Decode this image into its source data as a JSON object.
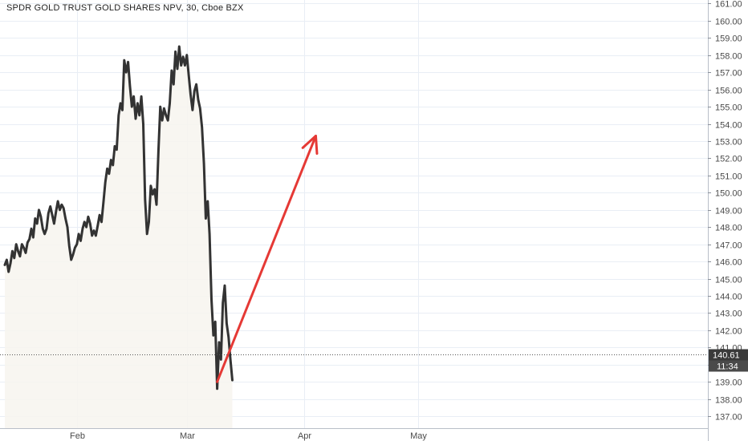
{
  "header": {
    "title": "SPDR GOLD TRUST GOLD SHARES NPV, 30, Cboe BZX"
  },
  "price_badge": {
    "price": "140.61",
    "countdown": "11:34",
    "color": "#3a3a3a"
  },
  "colors": {
    "price_line": "#333333",
    "arrow": "#e53935",
    "grid": "#e9eef5",
    "last_price_line": "#555555"
  },
  "chart_data": {
    "type": "line",
    "title": "SPDR GOLD TRUST GOLD SHARES NPV, 30, Cboe BZX",
    "xlabel": "",
    "ylabel": "",
    "ylim": [
      136.5,
      161.2
    ],
    "y_ticks": [
      "137.00",
      "138.00",
      "139.00",
      "140.00",
      "141.00",
      "142.00",
      "143.00",
      "144.00",
      "145.00",
      "146.00",
      "147.00",
      "148.00",
      "149.00",
      "150.00",
      "151.00",
      "152.00",
      "153.00",
      "154.00",
      "155.00",
      "156.00",
      "157.00",
      "158.00",
      "159.00",
      "160.00",
      "161.00"
    ],
    "x_ticks": [
      {
        "label": "Feb",
        "day": 31
      },
      {
        "label": "Mar",
        "day": 60
      },
      {
        "label": "Apr",
        "day": 91
      },
      {
        "label": "May",
        "day": 121
      }
    ],
    "xlim_days": [
      12,
      160
    ],
    "series": [
      {
        "values": [
          [
            12,
            145.8
          ],
          [
            12.5,
            146.1
          ],
          [
            13,
            145.4
          ],
          [
            13.5,
            145.9
          ],
          [
            14,
            146.6
          ],
          [
            14.5,
            146.2
          ],
          [
            15,
            147.0
          ],
          [
            15.5,
            146.6
          ],
          [
            16,
            146.3
          ],
          [
            16.5,
            147.0
          ],
          [
            17,
            146.8
          ],
          [
            17.5,
            146.5
          ],
          [
            18,
            147.1
          ],
          [
            18.5,
            147.3
          ],
          [
            19,
            147.9
          ],
          [
            19.5,
            147.4
          ],
          [
            20,
            148.5
          ],
          [
            20.5,
            148.2
          ],
          [
            21,
            149.0
          ],
          [
            21.5,
            148.6
          ],
          [
            22,
            147.9
          ],
          [
            22.5,
            147.6
          ],
          [
            23,
            147.9
          ],
          [
            23.5,
            148.8
          ],
          [
            24,
            149.2
          ],
          [
            24.5,
            148.7
          ],
          [
            25,
            148.2
          ],
          [
            25.5,
            148.9
          ],
          [
            26,
            149.5
          ],
          [
            26.5,
            149.0
          ],
          [
            27,
            149.3
          ],
          [
            27.5,
            149.1
          ],
          [
            28,
            148.5
          ],
          [
            28.5,
            148.0
          ],
          [
            29,
            146.9
          ],
          [
            29.5,
            146.1
          ],
          [
            30,
            146.4
          ],
          [
            30.5,
            146.8
          ],
          [
            31,
            147.0
          ],
          [
            31.5,
            147.6
          ],
          [
            32,
            147.2
          ],
          [
            32.5,
            147.9
          ],
          [
            33,
            148.3
          ],
          [
            33.5,
            148.0
          ],
          [
            34,
            148.6
          ],
          [
            34.5,
            148.2
          ],
          [
            35,
            147.5
          ],
          [
            35.5,
            147.8
          ],
          [
            36,
            147.5
          ],
          [
            36.5,
            148.1
          ],
          [
            37,
            148.7
          ],
          [
            37.5,
            148.3
          ],
          [
            38,
            149.4
          ],
          [
            38.5,
            150.6
          ],
          [
            39,
            151.4
          ],
          [
            39.5,
            151.1
          ],
          [
            40,
            151.9
          ],
          [
            40.5,
            151.6
          ],
          [
            41,
            152.7
          ],
          [
            41.5,
            152.5
          ],
          [
            42,
            154.5
          ],
          [
            42.5,
            155.2
          ],
          [
            43,
            154.8
          ],
          [
            43.5,
            157.7
          ],
          [
            44,
            157.0
          ],
          [
            44.5,
            157.6
          ],
          [
            45,
            156.2
          ],
          [
            45.5,
            155.0
          ],
          [
            46,
            155.6
          ],
          [
            46.5,
            154.3
          ],
          [
            47,
            155.2
          ],
          [
            47.5,
            154.5
          ],
          [
            48,
            155.6
          ],
          [
            48.5,
            154.0
          ],
          [
            49,
            149.6
          ],
          [
            49.5,
            147.6
          ],
          [
            50,
            148.3
          ],
          [
            50.5,
            150.4
          ],
          [
            51,
            149.9
          ],
          [
            51.5,
            150.2
          ],
          [
            52,
            149.3
          ],
          [
            52.5,
            152.4
          ],
          [
            53,
            155.0
          ],
          [
            53.5,
            154.2
          ],
          [
            54,
            154.9
          ],
          [
            54.5,
            154.5
          ],
          [
            55,
            154.2
          ],
          [
            55.5,
            155.2
          ],
          [
            56,
            157.1
          ],
          [
            56.5,
            156.3
          ],
          [
            57,
            158.2
          ],
          [
            57.5,
            157.2
          ],
          [
            58,
            158.5
          ],
          [
            58.5,
            157.4
          ],
          [
            59,
            157.9
          ],
          [
            59.5,
            157.4
          ],
          [
            60,
            158.0
          ],
          [
            60.5,
            156.8
          ],
          [
            61,
            155.7
          ],
          [
            61.5,
            154.8
          ],
          [
            62,
            155.9
          ],
          [
            62.5,
            156.3
          ],
          [
            63,
            155.4
          ],
          [
            63.5,
            154.9
          ],
          [
            64,
            153.8
          ],
          [
            64.5,
            151.7
          ],
          [
            65,
            148.5
          ],
          [
            65.5,
            149.5
          ],
          [
            66,
            147.6
          ],
          [
            66.5,
            143.8
          ],
          [
            67,
            141.7
          ],
          [
            67.5,
            142.5
          ],
          [
            68,
            138.6
          ],
          [
            68.5,
            141.3
          ],
          [
            69,
            140.3
          ],
          [
            69.5,
            143.6
          ],
          [
            70,
            144.6
          ],
          [
            70.5,
            142.4
          ],
          [
            71,
            141.6
          ],
          [
            71.5,
            140.3
          ],
          [
            72,
            139.1
          ]
        ]
      }
    ],
    "annotations": [
      {
        "type": "arrow",
        "from": [
          68,
          139.0
        ],
        "to": [
          94,
          153.3
        ]
      }
    ],
    "grid": true,
    "last_price": 140.61
  }
}
